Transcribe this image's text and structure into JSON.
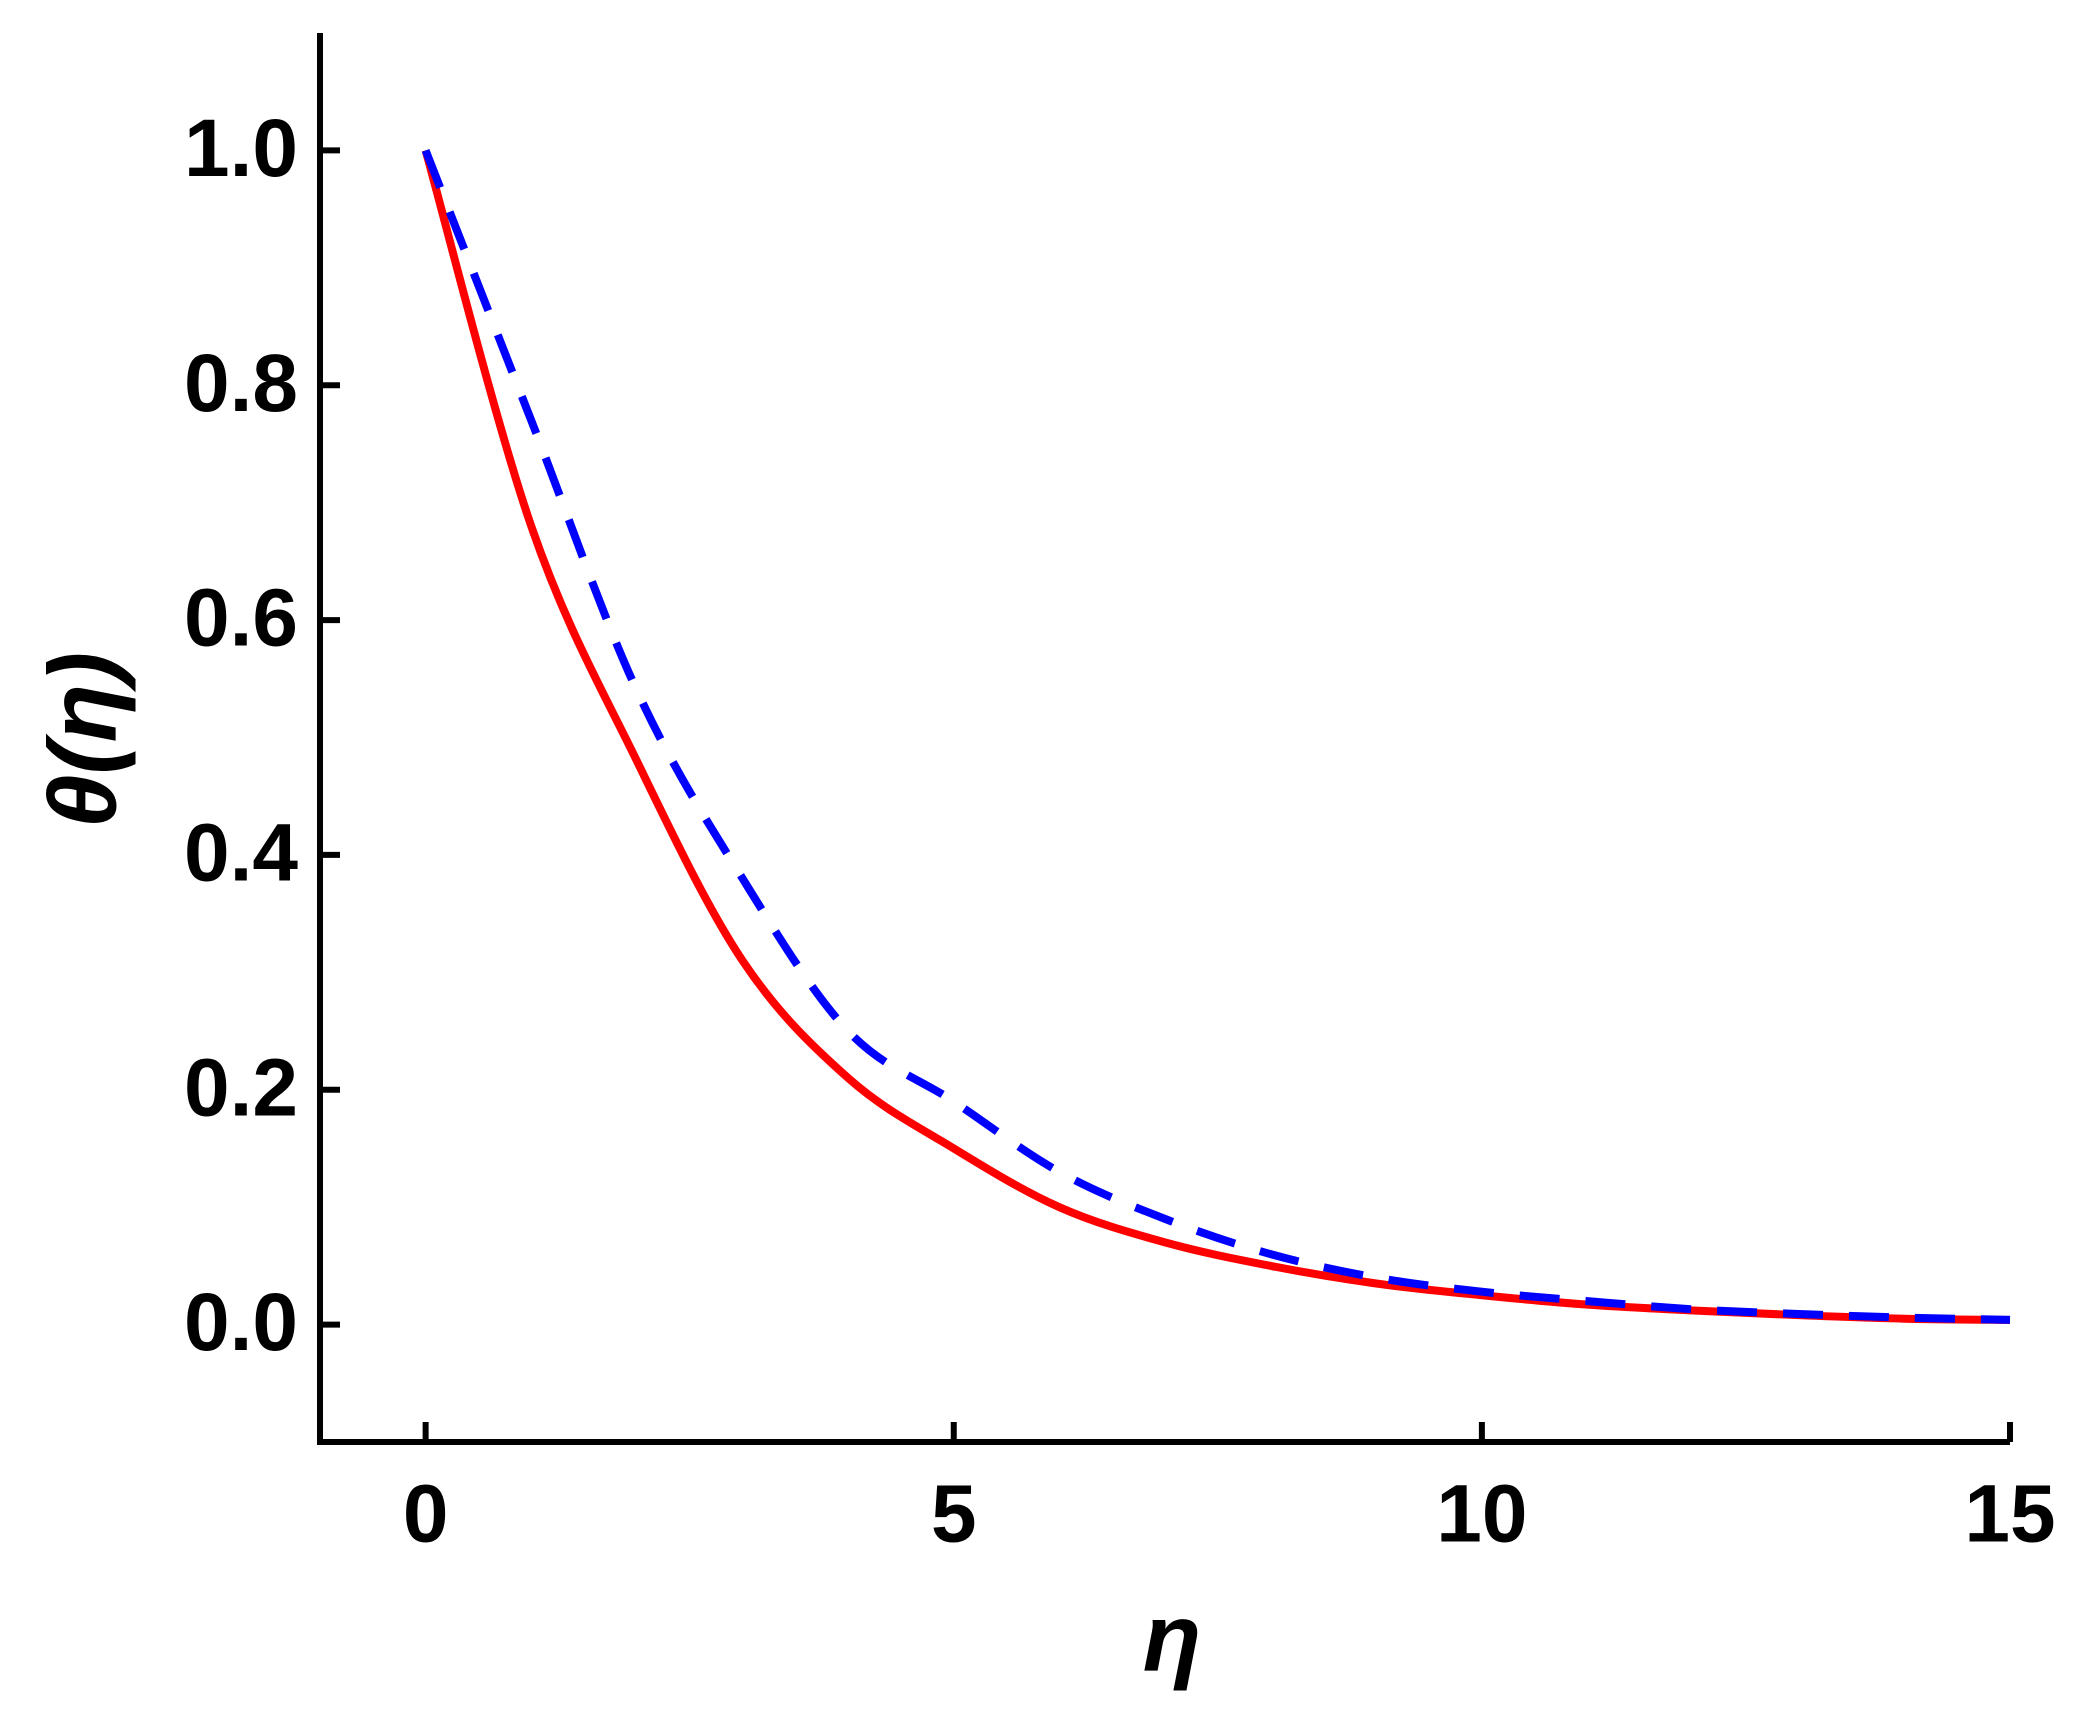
{
  "chart_data": {
    "type": "line",
    "xlabel": "η",
    "ylabel": "θ(η)",
    "x": [
      0,
      1,
      2,
      3,
      4,
      5,
      6,
      7,
      8,
      9,
      10,
      11,
      12,
      13,
      14,
      15
    ],
    "series": [
      {
        "color": "#ff0000",
        "dash": false,
        "values": [
          1.0,
          0.68,
          0.48,
          0.31,
          0.21,
          0.15,
          0.1,
          0.07,
          0.05,
          0.035,
          0.025,
          0.017,
          0.012,
          0.008,
          0.005,
          0.004
        ]
      },
      {
        "color": "#0000ff",
        "dash": true,
        "values": [
          1.0,
          0.77,
          0.54,
          0.38,
          0.25,
          0.19,
          0.13,
          0.09,
          0.06,
          0.04,
          0.028,
          0.02,
          0.013,
          0.009,
          0.006,
          0.004
        ]
      }
    ],
    "xlim": [
      -1,
      15
    ],
    "ylim": [
      -0.1,
      1.1
    ],
    "xticks": [
      0,
      5,
      10,
      15
    ],
    "yticks": [
      {
        "value": 0,
        "label": "0.0"
      },
      0.2,
      0.4,
      0.6,
      0.8,
      {
        "value": 1,
        "label": "1.0"
      }
    ]
  }
}
